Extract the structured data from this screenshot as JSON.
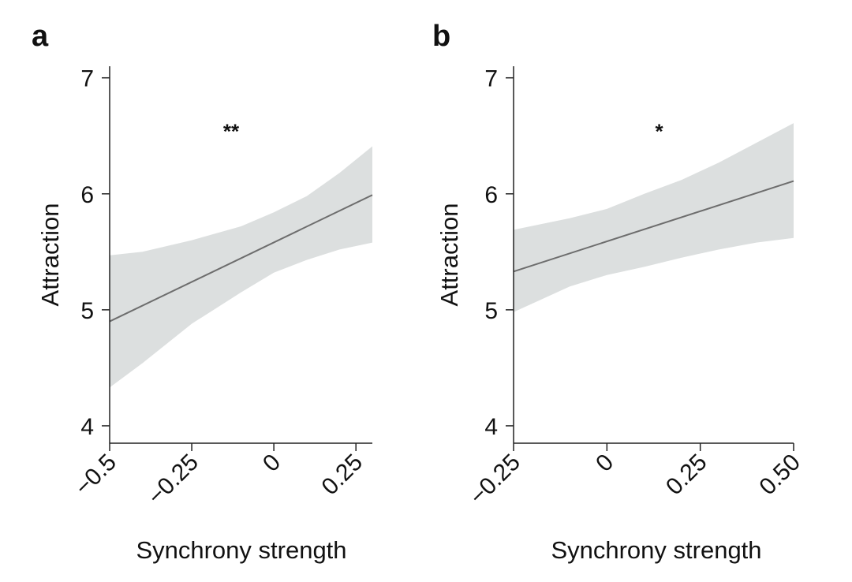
{
  "chart_data": [
    {
      "panel_label": "a",
      "type": "line",
      "xlabel": "Synchrony strength",
      "ylabel": "Attraction",
      "xlim": [
        -0.5,
        0.3
      ],
      "ylim": [
        3.85,
        7.1
      ],
      "xticks": [
        -0.5,
        -0.25,
        0,
        0.25
      ],
      "xtick_labels": [
        "−0.5",
        "−0.25",
        "0",
        "0.25"
      ],
      "yticks": [
        4,
        5,
        6,
        7
      ],
      "ytick_labels": [
        "4",
        "5",
        "6",
        "7"
      ],
      "significance": "**",
      "significance_x": -0.13,
      "significance_y": 6.6,
      "grid": false,
      "fit_line": {
        "x": [
          -0.5,
          0.3
        ],
        "y": [
          4.9,
          5.99
        ]
      },
      "confidence_band": {
        "x": [
          -0.5,
          -0.4,
          -0.25,
          -0.1,
          0.0,
          0.1,
          0.2,
          0.3
        ],
        "upper": [
          5.47,
          5.5,
          5.6,
          5.72,
          5.84,
          5.98,
          6.18,
          6.41
        ],
        "lower": [
          4.33,
          4.54,
          4.88,
          5.15,
          5.32,
          5.43,
          5.52,
          5.58
        ]
      },
      "colors": {
        "line": "#6d6d6d",
        "band": "#dcdfdf",
        "axis": "#222222"
      }
    },
    {
      "panel_label": "b",
      "type": "line",
      "xlabel": "Synchrony strength",
      "ylabel": "Attraction",
      "xlim": [
        -0.25,
        0.5
      ],
      "ylim": [
        3.85,
        7.1
      ],
      "xticks": [
        -0.25,
        0,
        0.25,
        0.5
      ],
      "xtick_labels": [
        "−0.25",
        "0",
        "0.25",
        "0.50"
      ],
      "yticks": [
        4,
        5,
        6,
        7
      ],
      "ytick_labels": [
        "4",
        "5",
        "6",
        "7"
      ],
      "significance": "*",
      "significance_x": 0.14,
      "significance_y": 6.6,
      "grid": false,
      "fit_line": {
        "x": [
          -0.25,
          0.5
        ],
        "y": [
          5.33,
          6.11
        ]
      },
      "confidence_band": {
        "x": [
          -0.25,
          -0.1,
          0.0,
          0.1,
          0.2,
          0.3,
          0.4,
          0.5
        ],
        "upper": [
          5.69,
          5.79,
          5.87,
          6.0,
          6.12,
          6.27,
          6.44,
          6.61
        ],
        "lower": [
          4.98,
          5.2,
          5.3,
          5.37,
          5.45,
          5.52,
          5.58,
          5.62
        ]
      },
      "colors": {
        "line": "#6d6d6d",
        "band": "#dcdfdf",
        "axis": "#222222"
      }
    }
  ]
}
